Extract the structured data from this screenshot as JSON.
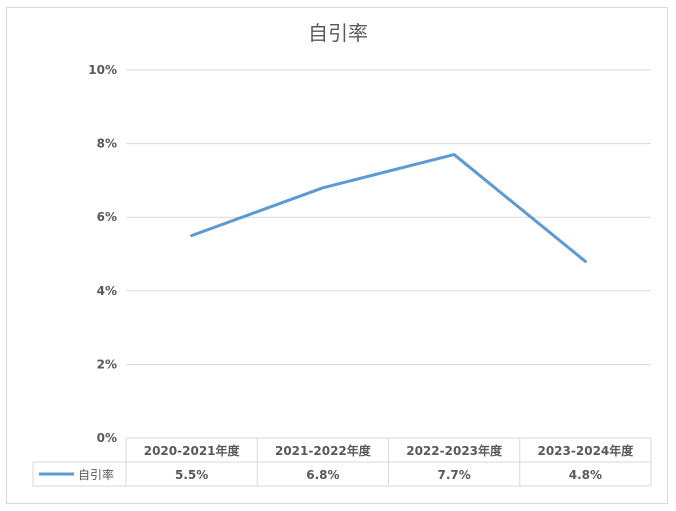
{
  "chart_data": {
    "type": "line",
    "title": "自引率",
    "categories": [
      "2020-2021年度",
      "2021-2022年度",
      "2022-2023年度",
      "2023-2024年度"
    ],
    "series": [
      {
        "name": "自引率",
        "values": [
          5.5,
          6.8,
          7.7,
          4.8
        ],
        "labels": [
          "5.5%",
          "6.8%",
          "7.7%",
          "4.8%"
        ]
      }
    ],
    "ylim": [
      0,
      10
    ],
    "yticks": [
      0,
      2,
      4,
      6,
      8,
      10
    ],
    "ytick_labels": [
      "0%",
      "2%",
      "4%",
      "6%",
      "8%",
      "10%"
    ],
    "grid": true,
    "legend": "data-table"
  },
  "colors": {
    "series_line": "#5b9bd5",
    "grid": "#d9d9d9",
    "axis_text": "#595959",
    "title_text": "#595959"
  }
}
